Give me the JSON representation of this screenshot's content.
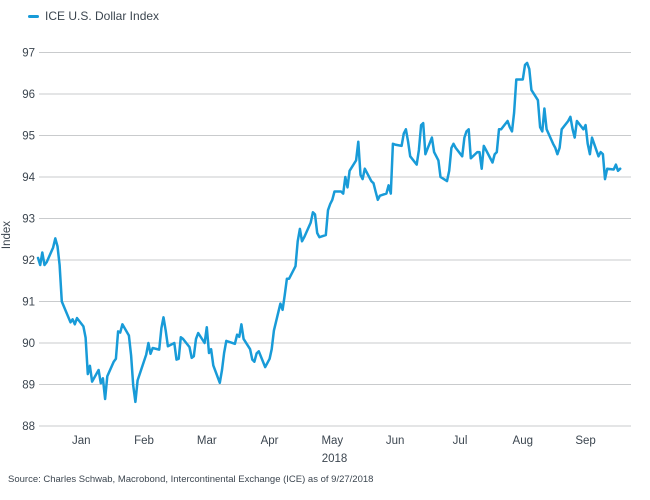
{
  "source": "Source: Charles Schwab, Macrobond, Intercontinental Exchange (ICE) as of 9/27/2018",
  "chart_data": {
    "type": "line",
    "title": "ICE U.S. Dollar Index",
    "ylabel": "Index",
    "x_axis_year": "2018",
    "legend_position": "top-left",
    "grid": "horizontal",
    "ylim": [
      88,
      97
    ],
    "y_ticks": [
      97,
      96,
      95,
      94,
      93,
      92,
      91,
      90,
      89,
      88
    ],
    "xlim_days": [
      0,
      274
    ],
    "x_ticks": [
      {
        "day": 20,
        "label": "Jan"
      },
      {
        "day": 49,
        "label": "Feb"
      },
      {
        "day": 78,
        "label": "Mar"
      },
      {
        "day": 107,
        "label": "Apr"
      },
      {
        "day": 136,
        "label": "May"
      },
      {
        "day": 165,
        "label": "Jun"
      },
      {
        "day": 195,
        "label": "Jul"
      },
      {
        "day": 224,
        "label": "Aug"
      },
      {
        "day": 253,
        "label": "Sep"
      }
    ],
    "line_color": "#189bd8",
    "grid_color": "#c9cbcd",
    "text_color": "#3c4650",
    "series": [
      {
        "name": "ICE U.S. Dollar Index",
        "x_unit": "days since 2018-01-01",
        "points": [
          [
            0,
            92.05
          ],
          [
            1,
            91.88
          ],
          [
            2,
            92.18
          ],
          [
            3,
            91.88
          ],
          [
            4,
            91.95
          ],
          [
            7,
            92.3
          ],
          [
            8,
            92.52
          ],
          [
            9,
            92.33
          ],
          [
            10,
            91.88
          ],
          [
            11,
            91.0
          ],
          [
            15,
            90.5
          ],
          [
            16,
            90.57
          ],
          [
            17,
            90.45
          ],
          [
            18,
            90.6
          ],
          [
            21,
            90.4
          ],
          [
            22,
            90.13
          ],
          [
            23,
            89.25
          ],
          [
            24,
            89.45
          ],
          [
            25,
            89.07
          ],
          [
            28,
            89.35
          ],
          [
            29,
            89.03
          ],
          [
            30,
            89.15
          ],
          [
            31,
            88.65
          ],
          [
            32,
            89.2
          ],
          [
            35,
            89.55
          ],
          [
            36,
            89.62
          ],
          [
            37,
            90.28
          ],
          [
            38,
            90.25
          ],
          [
            39,
            90.45
          ],
          [
            42,
            90.18
          ],
          [
            43,
            89.7
          ],
          [
            44,
            88.98
          ],
          [
            45,
            88.58
          ],
          [
            46,
            89.1
          ],
          [
            50,
            89.72
          ],
          [
            51,
            90.0
          ],
          [
            52,
            89.74
          ],
          [
            53,
            89.88
          ],
          [
            56,
            89.84
          ],
          [
            57,
            90.36
          ],
          [
            58,
            90.62
          ],
          [
            59,
            90.3
          ],
          [
            60,
            89.92
          ],
          [
            63,
            90.0
          ],
          [
            64,
            89.6
          ],
          [
            65,
            89.62
          ],
          [
            66,
            90.14
          ],
          [
            67,
            90.1
          ],
          [
            70,
            89.9
          ],
          [
            71,
            89.64
          ],
          [
            72,
            89.68
          ],
          [
            73,
            90.1
          ],
          [
            74,
            90.24
          ],
          [
            77,
            90.0
          ],
          [
            78,
            90.38
          ],
          [
            79,
            89.76
          ],
          [
            80,
            89.85
          ],
          [
            81,
            89.46
          ],
          [
            84,
            89.04
          ],
          [
            85,
            89.35
          ],
          [
            86,
            89.76
          ],
          [
            87,
            90.05
          ],
          [
            91,
            89.98
          ],
          [
            92,
            90.2
          ],
          [
            93,
            90.15
          ],
          [
            94,
            90.45
          ],
          [
            95,
            90.1
          ],
          [
            98,
            89.85
          ],
          [
            99,
            89.6
          ],
          [
            100,
            89.55
          ],
          [
            101,
            89.75
          ],
          [
            102,
            89.8
          ],
          [
            105,
            89.42
          ],
          [
            106,
            89.52
          ],
          [
            107,
            89.62
          ],
          [
            108,
            89.85
          ],
          [
            109,
            90.3
          ],
          [
            112,
            90.95
          ],
          [
            113,
            90.8
          ],
          [
            114,
            91.15
          ],
          [
            115,
            91.55
          ],
          [
            116,
            91.55
          ],
          [
            119,
            91.85
          ],
          [
            120,
            92.45
          ],
          [
            121,
            92.75
          ],
          [
            122,
            92.45
          ],
          [
            123,
            92.55
          ],
          [
            126,
            92.9
          ],
          [
            127,
            93.15
          ],
          [
            128,
            93.1
          ],
          [
            129,
            92.65
          ],
          [
            130,
            92.55
          ],
          [
            133,
            92.6
          ],
          [
            134,
            93.2
          ],
          [
            135,
            93.35
          ],
          [
            136,
            93.45
          ],
          [
            137,
            93.65
          ],
          [
            140,
            93.65
          ],
          [
            141,
            93.6
          ],
          [
            142,
            94.0
          ],
          [
            143,
            93.75
          ],
          [
            144,
            94.15
          ],
          [
            147,
            94.4
          ],
          [
            148,
            94.85
          ],
          [
            149,
            94.05
          ],
          [
            150,
            93.95
          ],
          [
            151,
            94.2
          ],
          [
            154,
            93.9
          ],
          [
            155,
            93.85
          ],
          [
            156,
            93.65
          ],
          [
            157,
            93.45
          ],
          [
            158,
            93.55
          ],
          [
            161,
            93.6
          ],
          [
            162,
            93.8
          ],
          [
            163,
            93.6
          ],
          [
            164,
            94.8
          ],
          [
            165,
            94.78
          ],
          [
            168,
            94.75
          ],
          [
            169,
            95.05
          ],
          [
            170,
            95.15
          ],
          [
            171,
            94.85
          ],
          [
            172,
            94.5
          ],
          [
            175,
            94.3
          ],
          [
            176,
            94.65
          ],
          [
            177,
            95.25
          ],
          [
            178,
            95.3
          ],
          [
            179,
            94.55
          ],
          [
            182,
            94.95
          ],
          [
            183,
            94.6
          ],
          [
            185,
            94.4
          ],
          [
            186,
            94.0
          ],
          [
            189,
            93.9
          ],
          [
            190,
            94.15
          ],
          [
            191,
            94.7
          ],
          [
            192,
            94.8
          ],
          [
            193,
            94.7
          ],
          [
            196,
            94.5
          ],
          [
            197,
            94.95
          ],
          [
            198,
            95.1
          ],
          [
            199,
            95.15
          ],
          [
            200,
            94.45
          ],
          [
            203,
            94.6
          ],
          [
            204,
            94.6
          ],
          [
            205,
            94.2
          ],
          [
            206,
            94.75
          ],
          [
            207,
            94.65
          ],
          [
            210,
            94.35
          ],
          [
            211,
            94.55
          ],
          [
            212,
            94.6
          ],
          [
            213,
            95.15
          ],
          [
            214,
            95.15
          ],
          [
            217,
            95.35
          ],
          [
            218,
            95.2
          ],
          [
            219,
            95.1
          ],
          [
            220,
            95.55
          ],
          [
            221,
            96.35
          ],
          [
            224,
            96.35
          ],
          [
            225,
            96.7
          ],
          [
            226,
            96.75
          ],
          [
            227,
            96.6
          ],
          [
            228,
            96.1
          ],
          [
            231,
            95.85
          ],
          [
            232,
            95.2
          ],
          [
            233,
            95.1
          ],
          [
            234,
            95.65
          ],
          [
            235,
            95.15
          ],
          [
            238,
            94.8
          ],
          [
            239,
            94.7
          ],
          [
            240,
            94.55
          ],
          [
            241,
            94.7
          ],
          [
            242,
            95.15
          ],
          [
            245,
            95.35
          ],
          [
            246,
            95.45
          ],
          [
            247,
            95.15
          ],
          [
            248,
            94.95
          ],
          [
            249,
            95.35
          ],
          [
            252,
            95.15
          ],
          [
            253,
            95.25
          ],
          [
            254,
            94.8
          ],
          [
            255,
            94.55
          ],
          [
            256,
            94.95
          ],
          [
            259,
            94.5
          ],
          [
            260,
            94.6
          ],
          [
            261,
            94.55
          ],
          [
            262,
            93.95
          ],
          [
            263,
            94.2
          ],
          [
            266,
            94.18
          ],
          [
            267,
            94.3
          ],
          [
            268,
            94.15
          ],
          [
            269,
            94.2
          ]
        ]
      }
    ]
  }
}
